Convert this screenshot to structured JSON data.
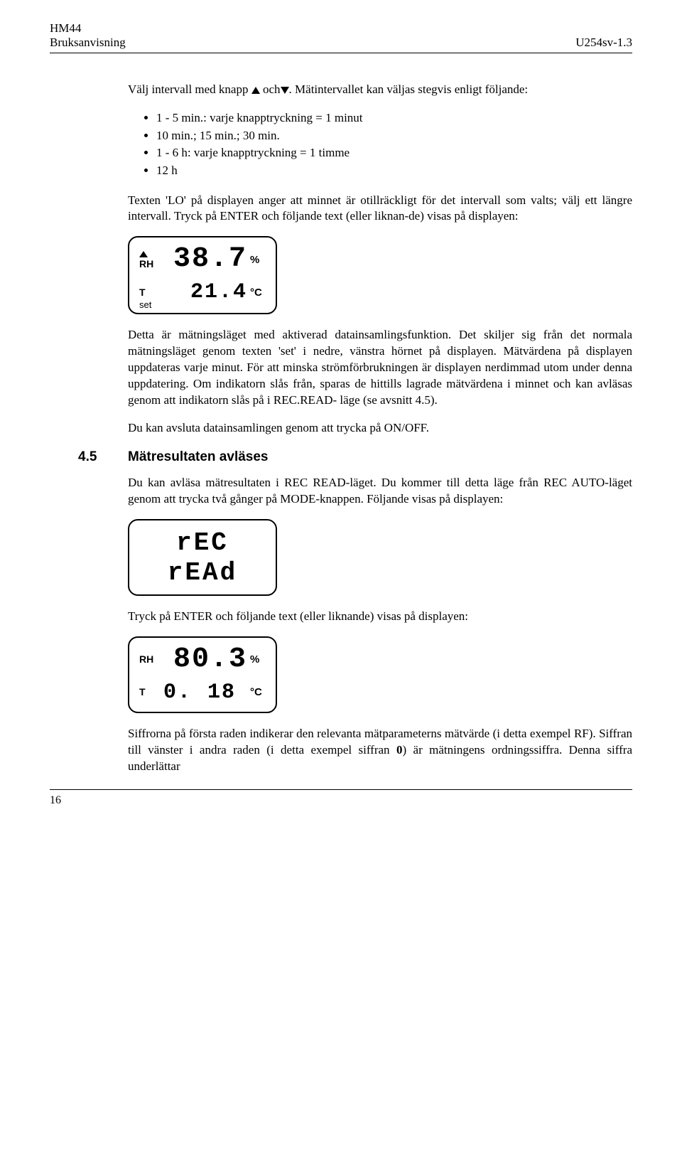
{
  "header": {
    "left1": "HM44",
    "left2": "Bruksanvisning",
    "right": "U254sv-1.3"
  },
  "intro": {
    "p1_a": "Välj intervall med knapp ",
    "p1_b": " och",
    "p1_c": ". Mätintervallet kan väljas stegvis enligt följande:"
  },
  "bullets": [
    "1 - 5 min.: varje knapptryckning = 1 minut",
    "10 min.; 15 min.; 30 min.",
    "1 - 6 h: varje knapptryckning = 1 timme",
    "12 h"
  ],
  "p2": "Texten 'LO' på displayen anger att minnet är otillräckligt för det intervall som valts; välj ett längre intervall. Tryck på ENTER och följande text (eller liknan-de) visas på displayen:",
  "lcd1": {
    "rh_label": "RH",
    "rh_value": "38.7",
    "rh_unit": "%",
    "t_label": "T",
    "t_value": "21.4",
    "t_unit": "°C",
    "set_label": "set"
  },
  "p3": "Detta är mätningsläget med aktiverad datainsamlingsfunktion. Det skiljer sig från det normala mätningsläget genom texten 'set' i nedre, vänstra hörnet på displayen. Mätvärdena på displayen uppdateras varje minut. För att minska strömförbrukningen är displayen  nerdimmad utom under denna uppdatering. Om indikatorn slås från, sparas de hittills lagrade mätvärdena i minnet och kan avläsas genom att indikatorn slås på i REC.READ- läge (se avsnitt 4.5).",
  "p4": "Du kan avsluta datainsamlingen genom att trycka på ON/OFF.",
  "section": {
    "num": "4.5",
    "title": "Mätresultaten avläses"
  },
  "p5": "Du kan avläsa mätresultaten i REC READ-läget. Du kommer till detta läge från REC AUTO-läget genom att trycka två gånger på MODE-knappen. Följande visas på displayen:",
  "lcd2": {
    "line1": "rEC",
    "line2": "rEAd"
  },
  "p6": "Tryck på ENTER och följande text (eller liknande) visas på displayen:",
  "lcd3": {
    "rh_label": "RH",
    "rh_value": "80.3",
    "rh_unit": "%",
    "t_label": "T",
    "t_value_a": "0.",
    "t_value_b": "18",
    "t_unit": "°C"
  },
  "p7_a": "Siffrorna på första raden indikerar den relevanta mätparameterns mätvärde (i detta exempel RF). Siffran till vänster i andra raden (i detta exempel siffran ",
  "p7_b": "0",
  "p7_c": ") är mätningens ordningssiffra. Denna siffra underlättar",
  "footer": {
    "page": "16"
  }
}
